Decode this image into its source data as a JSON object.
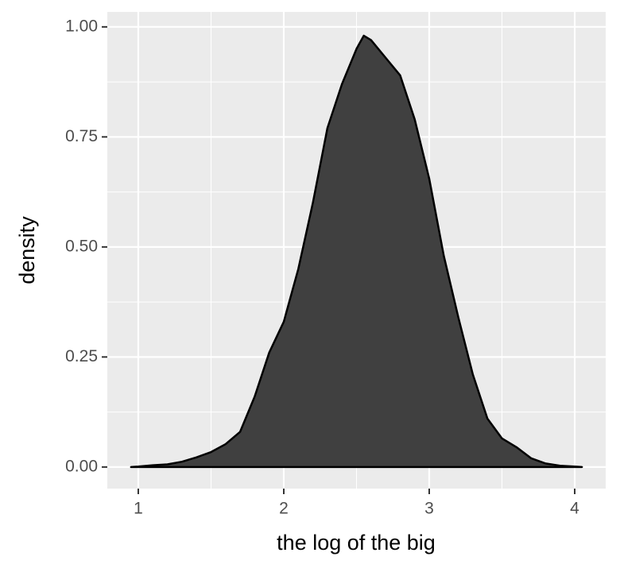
{
  "chart_data": {
    "type": "area",
    "x_label": "the log of the big",
    "y_label": "density",
    "x": [
      0.95,
      1.0,
      1.1,
      1.2,
      1.3,
      1.4,
      1.5,
      1.6,
      1.7,
      1.8,
      1.9,
      2.0,
      2.1,
      2.2,
      2.3,
      2.4,
      2.5,
      2.55,
      2.6,
      2.7,
      2.8,
      2.9,
      3.0,
      3.1,
      3.2,
      3.3,
      3.4,
      3.5,
      3.6,
      3.7,
      3.8,
      3.9,
      4.0,
      4.05
    ],
    "values": [
      0,
      0.001,
      0.004,
      0.006,
      0.012,
      0.022,
      0.034,
      0.052,
      0.08,
      0.16,
      0.26,
      0.33,
      0.45,
      0.6,
      0.77,
      0.87,
      0.95,
      0.98,
      0.97,
      0.93,
      0.89,
      0.79,
      0.655,
      0.48,
      0.34,
      0.21,
      0.11,
      0.065,
      0.045,
      0.02,
      0.008,
      0.003,
      0.001,
      0
    ],
    "color": "#404040",
    "outline": "#000000",
    "xlim": [
      0.787,
      4.213
    ],
    "ylim": [
      -0.049,
      1.034
    ],
    "xticks": [
      1,
      2,
      3,
      4
    ],
    "yticks": [
      {
        "value": 0,
        "label": "0.00"
      },
      {
        "value": 0.25,
        "label": "0.25"
      },
      {
        "value": 0.5,
        "label": "0.50"
      },
      {
        "value": 0.75,
        "label": "0.75"
      },
      {
        "value": 1,
        "label": "1.00"
      }
    ],
    "minor_xgrid": [
      1.5,
      2.5,
      3.5
    ],
    "minor_ygrid": [
      0.125,
      0.375,
      0.625,
      0.875
    ],
    "grid": true
  }
}
